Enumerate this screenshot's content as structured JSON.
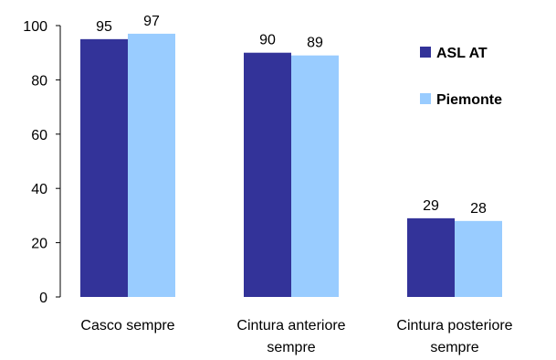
{
  "chart_data": {
    "type": "bar",
    "categories": [
      [
        "Casco sempre"
      ],
      [
        "Cintura anteriore",
        "sempre"
      ],
      [
        "Cintura posteriore",
        "sempre"
      ]
    ],
    "series": [
      {
        "name": "ASL AT",
        "color": "#333399",
        "values": [
          95,
          90,
          29
        ]
      },
      {
        "name": "Piemonte",
        "color": "#99CCFF",
        "values": [
          97,
          89,
          28
        ]
      }
    ],
    "ylim": [
      0,
      100
    ],
    "yticks": [
      0,
      20,
      40,
      60,
      80,
      100
    ],
    "grid": false,
    "legend_position": "right"
  }
}
